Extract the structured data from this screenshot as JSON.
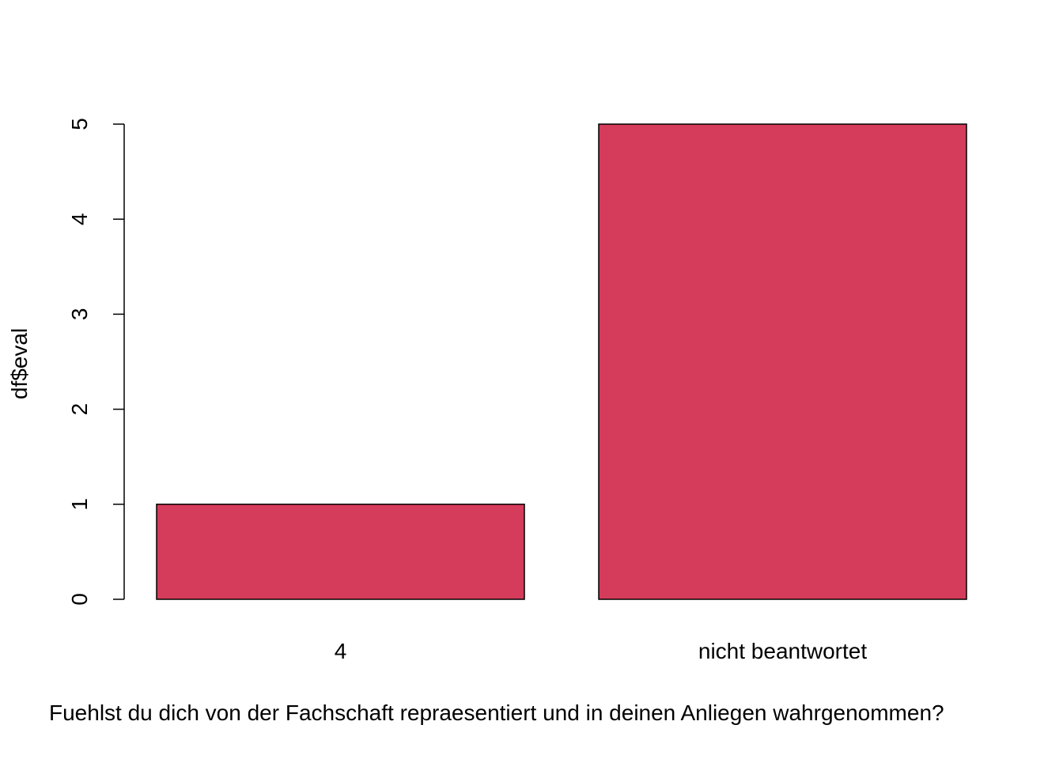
{
  "chart_data": {
    "type": "bar",
    "categories": [
      "4",
      "nicht beantwortet"
    ],
    "values": [
      1,
      5
    ],
    "title": "",
    "xlabel": "Fuehlst du dich von der Fachschaft repraesentiert und in deinen Anliegen wahrgenommen?",
    "ylabel": "df$eval",
    "ylim": [
      0,
      5
    ],
    "yticks": [
      0,
      1,
      2,
      3,
      4,
      5
    ],
    "bar_color": "#d53b5a",
    "grid": false,
    "legend": "none"
  }
}
